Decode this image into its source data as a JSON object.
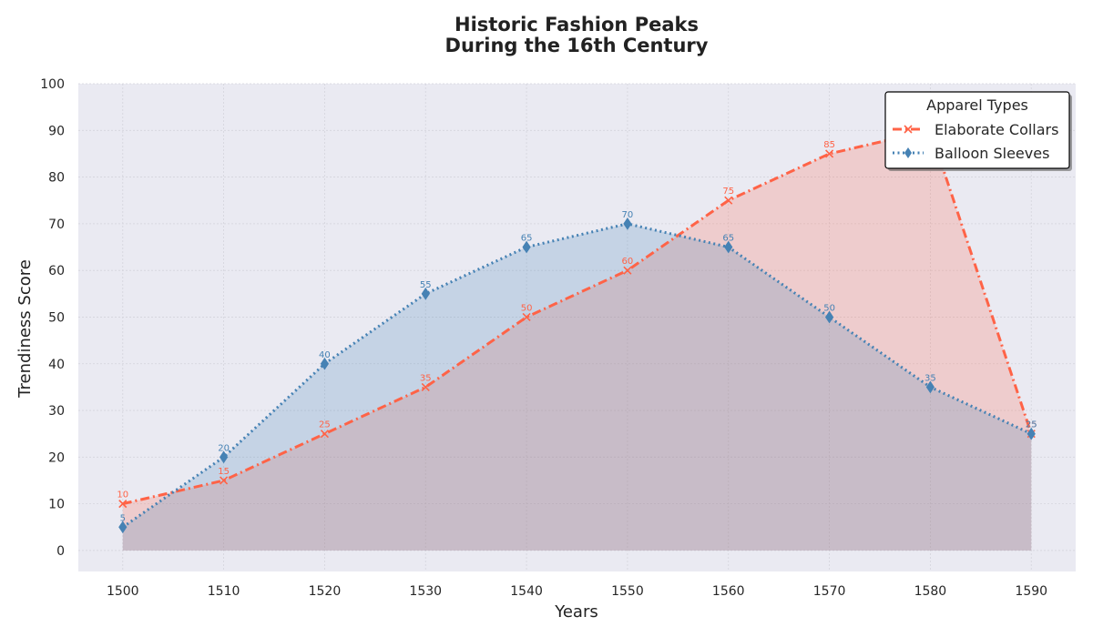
{
  "chart_data": {
    "type": "area",
    "title_line1": "Historic Fashion Peaks",
    "title_line2": "During the 16th Century",
    "xlabel": "Years",
    "ylabel": "Trendiness Score",
    "x": [
      1500,
      1510,
      1520,
      1530,
      1540,
      1550,
      1560,
      1570,
      1580,
      1590
    ],
    "xticks": [
      "1500",
      "1510",
      "1520",
      "1530",
      "1540",
      "1550",
      "1560",
      "1570",
      "1580",
      "1590"
    ],
    "yticks": [
      "0",
      "10",
      "20",
      "30",
      "40",
      "50",
      "60",
      "70",
      "80",
      "90",
      "100"
    ],
    "xlim": [
      1495.6,
      1594.4
    ],
    "ylim": [
      -4.5,
      100
    ],
    "grid": true,
    "legend": {
      "title": "Apparel Types",
      "placement": "top-right"
    },
    "series": [
      {
        "name": "Elaborate Collars",
        "values": [
          10,
          15,
          25,
          35,
          50,
          60,
          75,
          85,
          90,
          25
        ],
        "color": "#ff6347",
        "marker": "x",
        "linestyle": "dash-dot"
      },
      {
        "name": "Balloon Sleeves",
        "values": [
          5,
          20,
          40,
          55,
          65,
          70,
          65,
          50,
          35,
          25
        ],
        "color": "#4682b4",
        "marker": "diamond",
        "linestyle": "dotted"
      }
    ],
    "colors": {
      "plot_background": "#eaeaf2",
      "grid": "#d4d4dc"
    }
  }
}
